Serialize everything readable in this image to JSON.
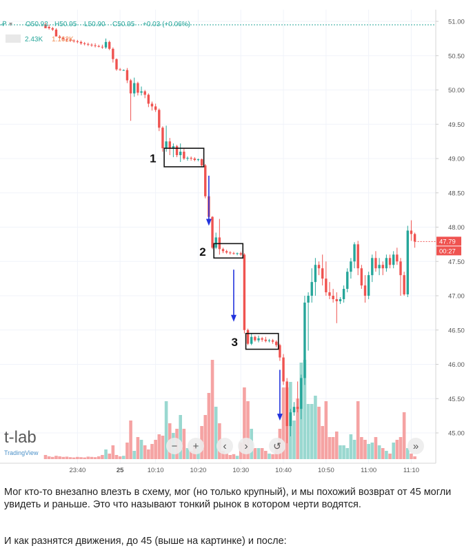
{
  "header": {
    "symbol_glyph": "Ꝓ",
    "o_label": "O",
    "o_value": "50.92",
    "h_label": "H",
    "h_value": "50.95",
    "l_label": "L",
    "l_value": "50.90",
    "c_label": "C",
    "c_value": "50.95",
    "change": "+0.03 (+0.06%)",
    "volume_a": "2.43K",
    "volume_b": "1.162K"
  },
  "watermark": {
    "text": "t-lab",
    "brand": "TradingView"
  },
  "nav_buttons": {
    "minus": "−",
    "plus": "+",
    "prev": "‹",
    "next": "›",
    "reset": "↺",
    "end": "»"
  },
  "price_tags": {
    "last": "47.79",
    "timer": "00:27"
  },
  "annotations": [
    "1",
    "2",
    "3"
  ],
  "caption": {
    "para1": "Мог кто-то внезапно влезть в схему, мог (но только крупный), и мы похожий возврат от 45 могли увидеть и раньше. Это что называют тонкий рынок в котором черти водятся.",
    "para2": "И как разнятся движения, до 45 (выше на картинке) и после:"
  },
  "colors": {
    "up": "#26a69a",
    "down": "#ef5350",
    "up_vol": "#9ad8d0",
    "down_vol": "#f5a3a3",
    "arrow": "#2233dd"
  },
  "chart_data": {
    "type": "candlestick",
    "title": "",
    "xlabel": "",
    "ylabel": "",
    "ylim": [
      44.6,
      51.1
    ],
    "y_ticks": [
      "51.00",
      "50.50",
      "50.00",
      "49.50",
      "49.00",
      "48.50",
      "48.00",
      "47.50",
      "47.00",
      "46.50",
      "46.00",
      "45.50",
      "45.00"
    ],
    "y_tick_values": [
      51.0,
      50.5,
      50.0,
      49.5,
      49.0,
      48.5,
      48.0,
      47.5,
      47.0,
      46.5,
      46.0,
      45.5,
      45.0
    ],
    "x_ticks": [
      "23:40",
      "25",
      "10:10",
      "10:20",
      "10:30",
      "10:40",
      "10:50",
      "11:00",
      "11:10"
    ],
    "x_tick_index": [
      9,
      21,
      31,
      43,
      55,
      67,
      79,
      91,
      103
    ],
    "grid": true,
    "candles": [
      {
        "o": 50.95,
        "h": 50.98,
        "l": 50.92,
        "c": 50.9
      },
      {
        "o": 50.92,
        "h": 50.95,
        "l": 50.88,
        "c": 50.9
      },
      {
        "o": 50.9,
        "h": 50.92,
        "l": 50.86,
        "c": 50.88
      },
      {
        "o": 50.88,
        "h": 50.9,
        "l": 50.82,
        "c": 50.78
      },
      {
        "o": 50.78,
        "h": 50.8,
        "l": 50.74,
        "c": 50.76
      },
      {
        "o": 50.76,
        "h": 50.78,
        "l": 50.72,
        "c": 50.74
      },
      {
        "o": 50.74,
        "h": 50.76,
        "l": 50.7,
        "c": 50.73
      },
      {
        "o": 50.73,
        "h": 50.75,
        "l": 50.7,
        "c": 50.72
      },
      {
        "o": 50.72,
        "h": 50.74,
        "l": 50.69,
        "c": 50.71
      },
      {
        "o": 50.71,
        "h": 50.73,
        "l": 50.68,
        "c": 50.7
      },
      {
        "o": 50.7,
        "h": 50.72,
        "l": 50.66,
        "c": 50.68
      },
      {
        "o": 50.68,
        "h": 50.7,
        "l": 50.65,
        "c": 50.67
      },
      {
        "o": 50.67,
        "h": 50.69,
        "l": 50.64,
        "c": 50.66
      },
      {
        "o": 50.66,
        "h": 50.68,
        "l": 50.63,
        "c": 50.65
      },
      {
        "o": 50.65,
        "h": 50.68,
        "l": 50.62,
        "c": 50.64
      },
      {
        "o": 50.64,
        "h": 50.66,
        "l": 50.62,
        "c": 50.63
      },
      {
        "o": 50.63,
        "h": 50.66,
        "l": 50.6,
        "c": 50.62
      },
      {
        "o": 50.62,
        "h": 50.75,
        "l": 50.6,
        "c": 50.7
      },
      {
        "o": 50.7,
        "h": 50.72,
        "l": 50.58,
        "c": 50.6
      },
      {
        "o": 50.6,
        "h": 50.62,
        "l": 50.4,
        "c": 50.45
      },
      {
        "o": 50.45,
        "h": 50.46,
        "l": 50.28,
        "c": 50.3
      },
      {
        "o": 50.3,
        "h": 50.32,
        "l": 50.28,
        "c": 50.29
      },
      {
        "o": 50.29,
        "h": 50.3,
        "l": 50.28,
        "c": 50.29
      },
      {
        "o": 50.29,
        "h": 50.32,
        "l": 50.1,
        "c": 50.14
      },
      {
        "o": 50.14,
        "h": 50.16,
        "l": 49.55,
        "c": 49.95
      },
      {
        "o": 49.95,
        "h": 50.18,
        "l": 49.9,
        "c": 50.1
      },
      {
        "o": 50.1,
        "h": 50.12,
        "l": 49.92,
        "c": 49.96
      },
      {
        "o": 49.96,
        "h": 50.05,
        "l": 49.92,
        "c": 49.98
      },
      {
        "o": 49.98,
        "h": 50.0,
        "l": 49.88,
        "c": 49.93
      },
      {
        "o": 49.93,
        "h": 49.95,
        "l": 49.75,
        "c": 49.8
      },
      {
        "o": 49.8,
        "h": 49.83,
        "l": 49.7,
        "c": 49.76
      },
      {
        "o": 49.76,
        "h": 49.8,
        "l": 49.68,
        "c": 49.71
      },
      {
        "o": 49.71,
        "h": 49.73,
        "l": 49.4,
        "c": 49.45
      },
      {
        "o": 49.45,
        "h": 49.47,
        "l": 49.1,
        "c": 49.15
      },
      {
        "o": 49.15,
        "h": 49.48,
        "l": 49.1,
        "c": 49.25
      },
      {
        "o": 49.25,
        "h": 49.3,
        "l": 49.05,
        "c": 49.15
      },
      {
        "o": 49.15,
        "h": 49.22,
        "l": 49.02,
        "c": 49.18
      },
      {
        "o": 49.18,
        "h": 49.2,
        "l": 49.02,
        "c": 49.05
      },
      {
        "o": 49.05,
        "h": 49.22,
        "l": 48.95,
        "c": 49.1
      },
      {
        "o": 49.1,
        "h": 49.15,
        "l": 48.98,
        "c": 49.0
      },
      {
        "o": 49.0,
        "h": 49.03,
        "l": 48.97,
        "c": 49.01
      },
      {
        "o": 49.01,
        "h": 49.03,
        "l": 48.97,
        "c": 49.0
      },
      {
        "o": 49.0,
        "h": 49.02,
        "l": 48.96,
        "c": 48.98
      },
      {
        "o": 48.98,
        "h": 49.0,
        "l": 48.96,
        "c": 48.99
      },
      {
        "o": 48.99,
        "h": 49.0,
        "l": 48.88,
        "c": 48.9
      },
      {
        "o": 48.9,
        "h": 48.92,
        "l": 48.42,
        "c": 48.45
      },
      {
        "o": 48.45,
        "h": 48.47,
        "l": 48.1,
        "c": 48.15
      },
      {
        "o": 48.15,
        "h": 48.16,
        "l": 47.68,
        "c": 47.7
      },
      {
        "o": 47.7,
        "h": 47.92,
        "l": 47.68,
        "c": 47.85
      },
      {
        "o": 47.85,
        "h": 48.12,
        "l": 47.6,
        "c": 47.68
      },
      {
        "o": 47.68,
        "h": 47.7,
        "l": 47.62,
        "c": 47.65
      },
      {
        "o": 47.65,
        "h": 47.67,
        "l": 47.61,
        "c": 47.63
      },
      {
        "o": 47.63,
        "h": 47.65,
        "l": 47.6,
        "c": 47.62
      },
      {
        "o": 47.62,
        "h": 47.64,
        "l": 47.6,
        "c": 47.61
      },
      {
        "o": 47.61,
        "h": 47.63,
        "l": 47.59,
        "c": 47.62
      },
      {
        "o": 47.62,
        "h": 47.64,
        "l": 47.58,
        "c": 47.6
      },
      {
        "o": 47.6,
        "h": 47.62,
        "l": 46.45,
        "c": 46.5
      },
      {
        "o": 46.5,
        "h": 46.52,
        "l": 46.28,
        "c": 46.3
      },
      {
        "o": 46.3,
        "h": 46.45,
        "l": 46.28,
        "c": 46.4
      },
      {
        "o": 46.4,
        "h": 46.42,
        "l": 46.33,
        "c": 46.35
      },
      {
        "o": 46.35,
        "h": 46.42,
        "l": 46.32,
        "c": 46.38
      },
      {
        "o": 46.38,
        "h": 46.4,
        "l": 46.33,
        "c": 46.36
      },
      {
        "o": 46.36,
        "h": 46.4,
        "l": 46.32,
        "c": 46.34
      },
      {
        "o": 46.34,
        "h": 46.37,
        "l": 46.32,
        "c": 46.35
      },
      {
        "o": 46.35,
        "h": 46.37,
        "l": 46.3,
        "c": 46.33
      },
      {
        "o": 46.33,
        "h": 46.35,
        "l": 46.25,
        "c": 46.28
      },
      {
        "o": 46.28,
        "h": 46.3,
        "l": 46.05,
        "c": 46.1
      },
      {
        "o": 46.1,
        "h": 46.15,
        "l": 45.7,
        "c": 45.75
      },
      {
        "o": 45.75,
        "h": 45.8,
        "l": 44.85,
        "c": 45.1
      },
      {
        "o": 45.1,
        "h": 45.35,
        "l": 44.95,
        "c": 45.3
      },
      {
        "o": 45.3,
        "h": 45.45,
        "l": 45.25,
        "c": 45.38
      },
      {
        "o": 45.38,
        "h": 45.75,
        "l": 45.3,
        "c": 45.35
      },
      {
        "o": 45.35,
        "h": 45.85,
        "l": 45.2,
        "c": 45.8
      },
      {
        "o": 45.8,
        "h": 47.0,
        "l": 45.7,
        "c": 46.9
      },
      {
        "o": 46.9,
        "h": 47.05,
        "l": 46.2,
        "c": 47.0
      },
      {
        "o": 47.0,
        "h": 47.4,
        "l": 46.9,
        "c": 47.2
      },
      {
        "o": 47.2,
        "h": 47.55,
        "l": 47.0,
        "c": 47.45
      },
      {
        "o": 47.45,
        "h": 47.5,
        "l": 47.3,
        "c": 47.4
      },
      {
        "o": 47.4,
        "h": 47.6,
        "l": 47.15,
        "c": 47.25
      },
      {
        "o": 47.25,
        "h": 47.5,
        "l": 47.0,
        "c": 47.05
      },
      {
        "o": 47.05,
        "h": 47.2,
        "l": 46.95,
        "c": 47.0
      },
      {
        "o": 47.0,
        "h": 47.1,
        "l": 46.9,
        "c": 46.95
      },
      {
        "o": 46.95,
        "h": 47.05,
        "l": 46.6,
        "c": 46.92
      },
      {
        "o": 46.92,
        "h": 46.98,
        "l": 46.88,
        "c": 46.95
      },
      {
        "o": 46.95,
        "h": 47.15,
        "l": 46.9,
        "c": 47.1
      },
      {
        "o": 47.1,
        "h": 47.4,
        "l": 47.05,
        "c": 47.35
      },
      {
        "o": 47.35,
        "h": 47.55,
        "l": 47.25,
        "c": 47.5
      },
      {
        "o": 47.5,
        "h": 47.78,
        "l": 47.4,
        "c": 47.75
      },
      {
        "o": 47.75,
        "h": 47.8,
        "l": 47.3,
        "c": 47.4
      },
      {
        "o": 47.4,
        "h": 47.45,
        "l": 47.1,
        "c": 47.15
      },
      {
        "o": 47.15,
        "h": 47.3,
        "l": 46.9,
        "c": 47.0
      },
      {
        "o": 47.0,
        "h": 47.35,
        "l": 46.95,
        "c": 47.3
      },
      {
        "o": 47.3,
        "h": 47.6,
        "l": 47.2,
        "c": 47.55
      },
      {
        "o": 47.55,
        "h": 47.65,
        "l": 47.35,
        "c": 47.4
      },
      {
        "o": 47.4,
        "h": 47.55,
        "l": 47.3,
        "c": 47.45
      },
      {
        "o": 47.45,
        "h": 47.5,
        "l": 47.3,
        "c": 47.4
      },
      {
        "o": 47.4,
        "h": 47.6,
        "l": 47.35,
        "c": 47.55
      },
      {
        "o": 47.55,
        "h": 47.6,
        "l": 47.4,
        "c": 47.45
      },
      {
        "o": 47.45,
        "h": 47.65,
        "l": 47.4,
        "c": 47.6
      },
      {
        "o": 47.6,
        "h": 47.7,
        "l": 47.45,
        "c": 47.5
      },
      {
        "o": 47.5,
        "h": 47.55,
        "l": 47.0,
        "c": 47.3
      },
      {
        "o": 47.3,
        "h": 47.35,
        "l": 47.0,
        "c": 47.02
      },
      {
        "o": 47.02,
        "h": 48.02,
        "l": 46.98,
        "c": 47.95
      },
      {
        "o": 47.95,
        "h": 48.1,
        "l": 47.8,
        "c": 47.9
      },
      {
        "o": 47.9,
        "h": 47.92,
        "l": 47.7,
        "c": 47.79
      }
    ],
    "volumes": [
      0.15,
      0.1,
      0.08,
      0.12,
      0.1,
      0.08,
      0.09,
      0.07,
      0.06,
      0.08,
      0.07,
      0.06,
      0.09,
      0.08,
      0.07,
      0.1,
      0.15,
      0.35,
      0.2,
      0.5,
      0.15,
      0.1,
      0.12,
      0.6,
      1.4,
      0.3,
      0.8,
      0.7,
      0.5,
      0.35,
      0.55,
      0.7,
      0.9,
      0.85,
      2.1,
      1.3,
      0.95,
      1.1,
      1.6,
      1.1,
      0.4,
      0.3,
      0.45,
      0.5,
      1.2,
      1.6,
      2.4,
      3.6,
      1.9,
      1.3,
      0.3,
      0.2,
      0.15,
      0.18,
      0.12,
      0.6,
      2.6,
      2.1,
      1.1,
      0.4,
      0.4,
      0.4,
      0.3,
      0.2,
      0.18,
      0.5,
      1.1,
      2.6,
      2.6,
      2.8,
      1.4,
      2.2,
      3.5,
      3.6,
      2.0,
      2.0,
      2.3,
      1.9,
      1.2,
      2.1,
      0.8,
      0.8,
      1.0,
      0.5,
      0.5,
      0.4,
      0.9,
      0.7,
      2.1,
      0.8,
      0.7,
      0.55,
      0.6,
      0.8,
      0.5,
      0.4,
      0.3,
      0.2,
      0.6,
      0.7,
      0.8,
      1.7,
      0.4,
      0.2,
      0.1
    ],
    "volume_colors": "direction",
    "boxes": [
      {
        "label": "1",
        "from": 34,
        "to": 44,
        "high": 49.15,
        "low": 48.88
      },
      {
        "label": "2",
        "from": 48,
        "to": 55,
        "high": 47.76,
        "low": 47.55
      },
      {
        "label": "3",
        "from": 57,
        "to": 65,
        "high": 46.45,
        "low": 46.22
      }
    ],
    "arrows": [
      {
        "index": 46,
        "from": 48.75,
        "to": 48.02
      },
      {
        "index": 53,
        "from": 47.38,
        "to": 46.62
      },
      {
        "index": 66,
        "from": 45.92,
        "to": 45.18
      }
    ],
    "last_price": 47.79,
    "high_line": 50.95
  }
}
